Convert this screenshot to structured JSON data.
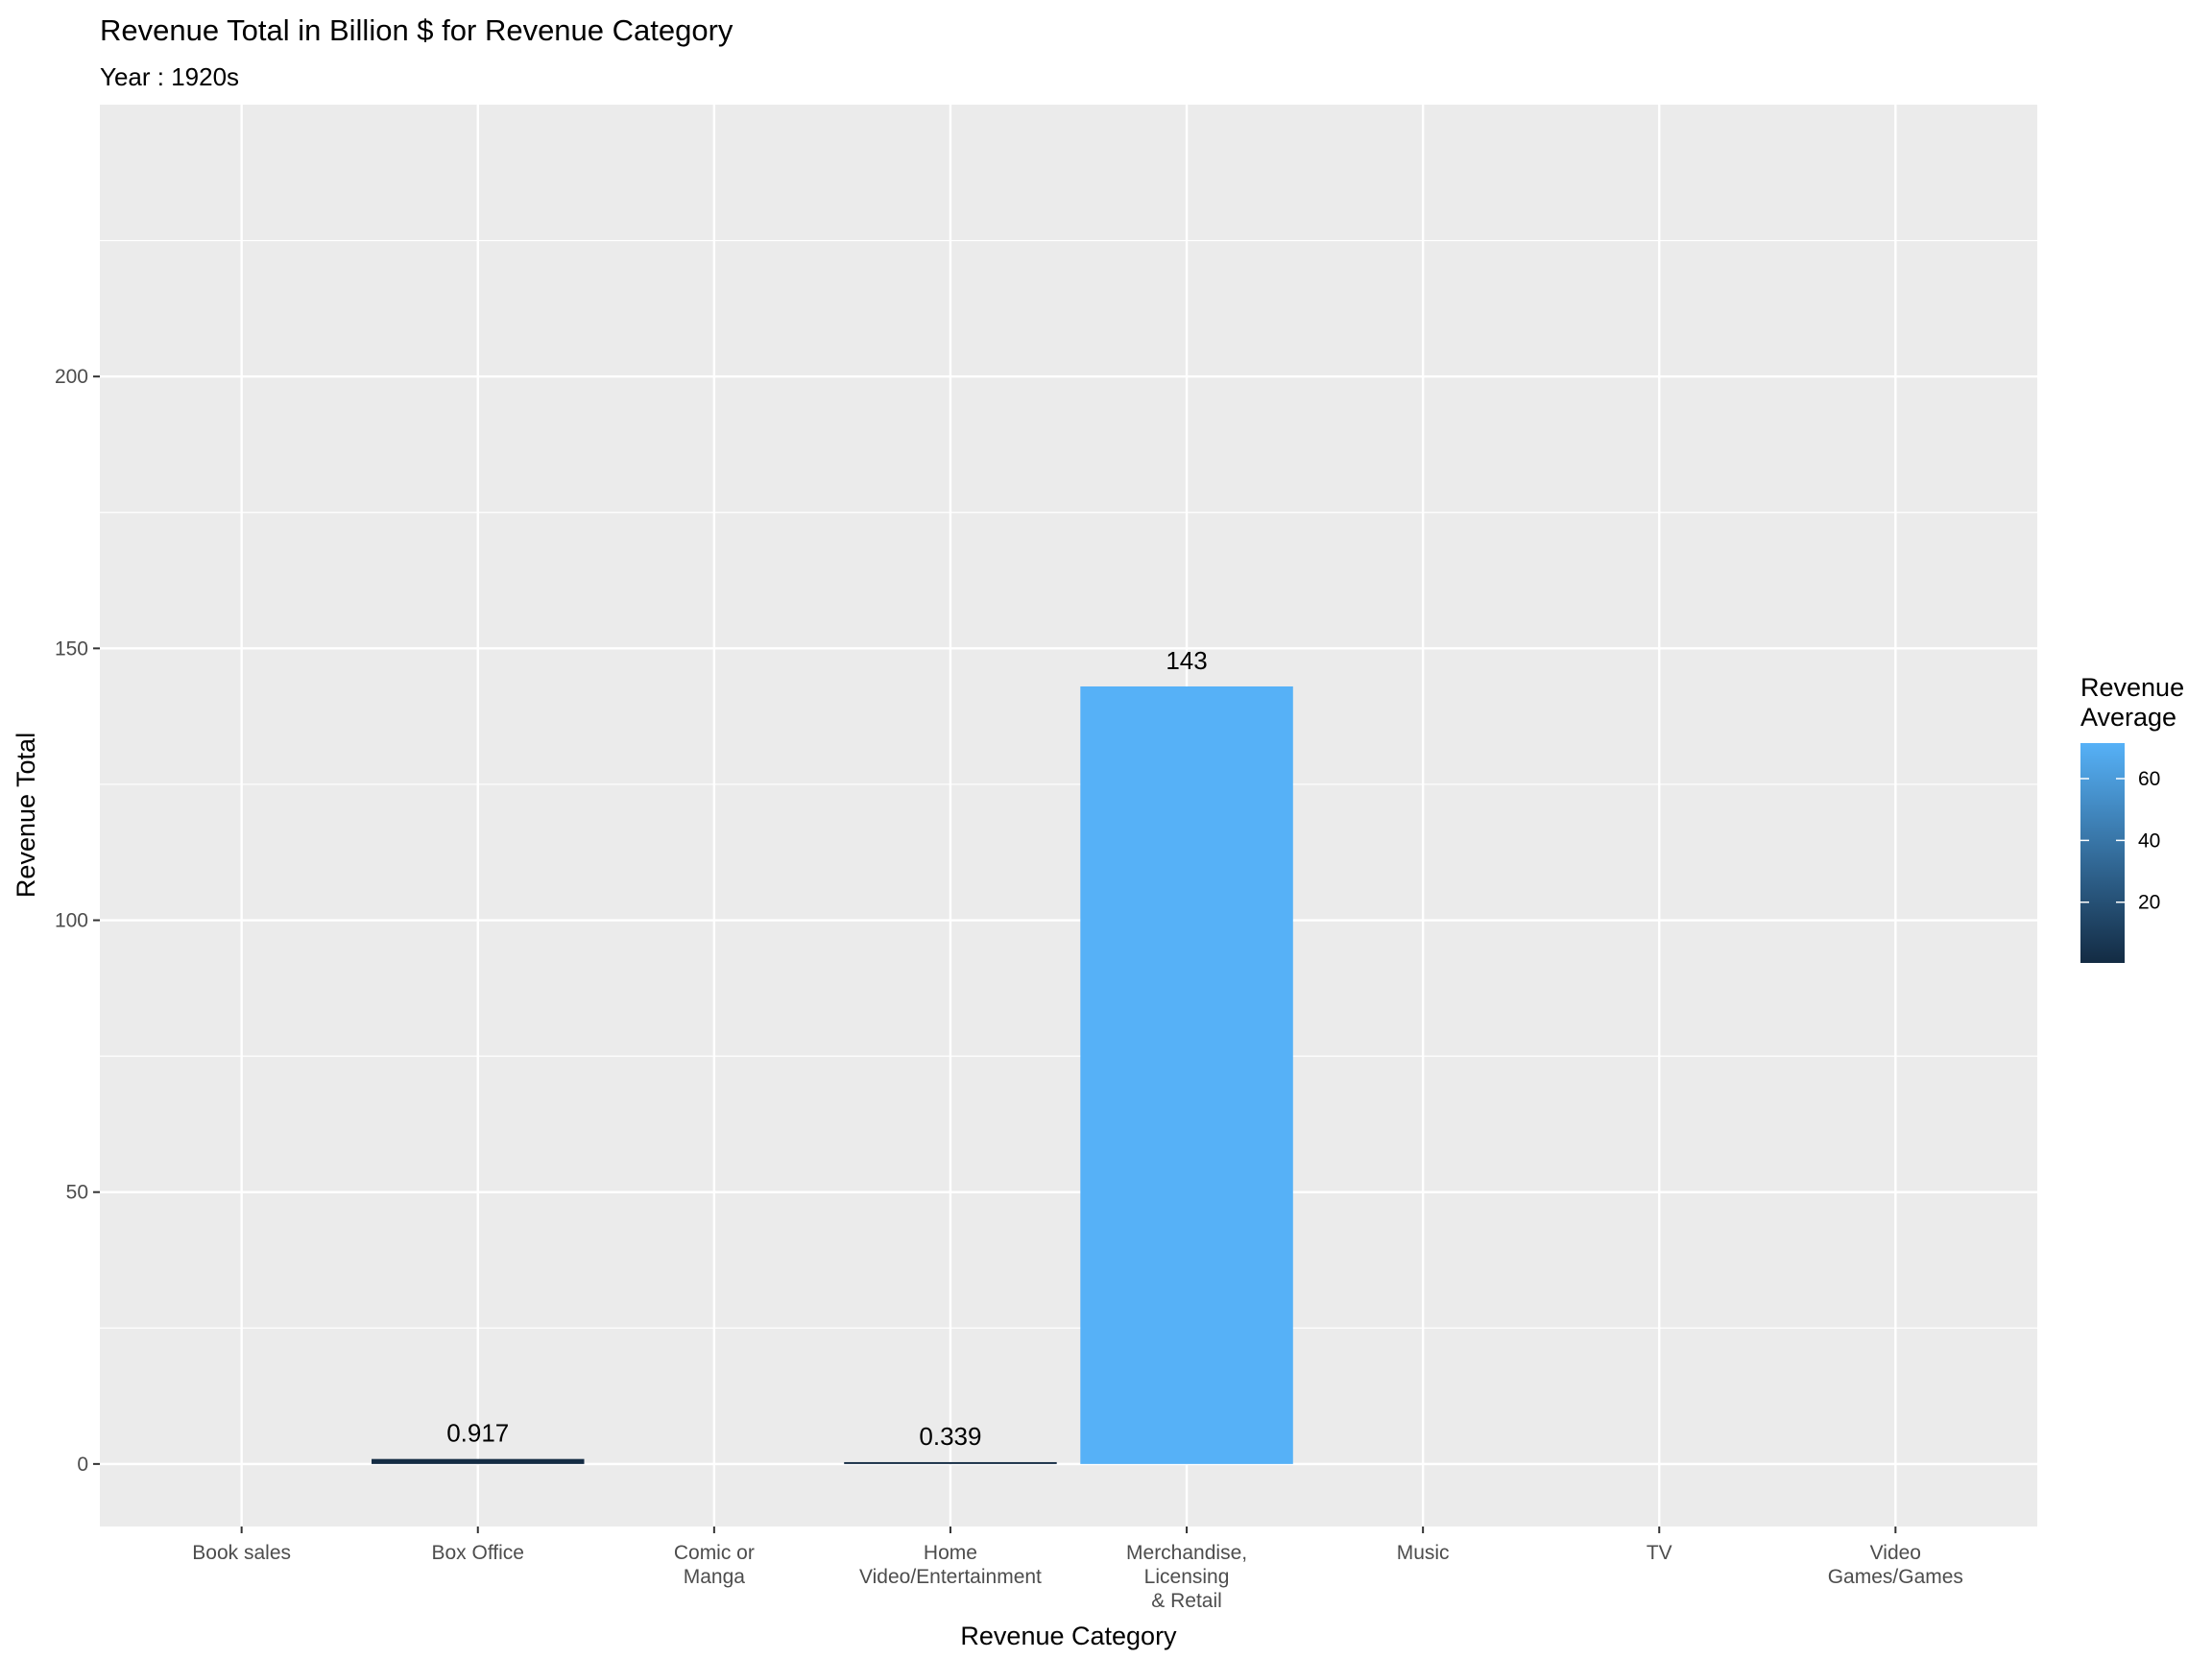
{
  "chart_data": {
    "type": "bar",
    "title": "Revenue Total in Billion $ for Revenue Category",
    "subtitle": "Year : 1920s",
    "xlabel": "Revenue Category",
    "ylabel": "Revenue Total",
    "categories": [
      [
        "Book sales"
      ],
      [
        "Box Office"
      ],
      [
        "Comic or",
        "Manga"
      ],
      [
        "Home",
        "Video/Entertainment"
      ],
      [
        "Merchandise,",
        "Licensing",
        "& Retail"
      ],
      [
        "Music"
      ],
      [
        "TV"
      ],
      [
        "Video",
        "Games/Games"
      ]
    ],
    "values": [
      null,
      0.917,
      null,
      0.339,
      143,
      null,
      null,
      null
    ],
    "data_labels": [
      "",
      "0.917",
      "",
      "0.339",
      "143",
      "",
      "",
      ""
    ],
    "fill_values": [
      null,
      0.917,
      null,
      0.339,
      71.5,
      null,
      null,
      null
    ],
    "ylim": [
      -11.5,
      250
    ],
    "yticks": [
      0,
      50,
      100,
      150,
      200
    ],
    "grid": true,
    "legend": {
      "title": [
        "Revenue",
        "Average"
      ],
      "position": "right",
      "type": "colorbar",
      "range": [
        0.339,
        71.5
      ],
      "ticks": [
        20,
        40,
        60
      ],
      "colors": [
        "#132B43",
        "#56B1F7"
      ]
    },
    "colors": {
      "panel": "#EBEBEB",
      "grid": "#FFFFFF",
      "tick": "#333333"
    }
  }
}
